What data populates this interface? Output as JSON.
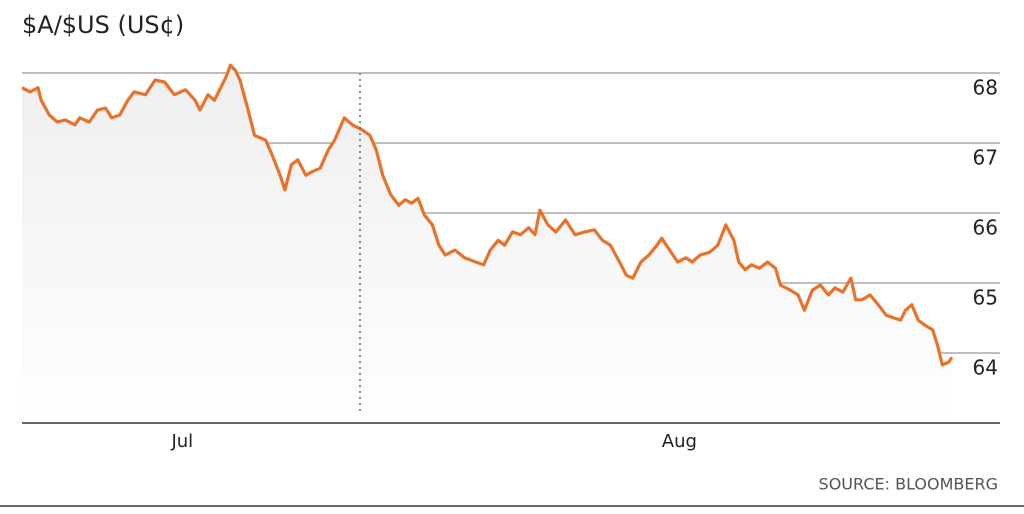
{
  "chart_data": {
    "type": "line",
    "title": "$A/$US (US¢)",
    "source": "SOURCE: BLOOMBERG",
    "color": "#e8722a",
    "grid": true,
    "area": true,
    "x": [
      -10.0,
      -9.5,
      -9.0,
      -8.8,
      -8.3,
      -7.8,
      -7.3,
      -6.7,
      -6.4,
      -5.8,
      -5.3,
      -4.8,
      -4.4,
      -3.9,
      -3.4,
      -3.0,
      -2.3,
      -1.7,
      -1.1,
      -0.5,
      0.2,
      0.8,
      1.1,
      1.6,
      2.0,
      2.7,
      3.0,
      3.3,
      3.6,
      4.1,
      4.5,
      5.2,
      5.6,
      6.1,
      6.4,
      6.8,
      7.2,
      7.7,
      8.1,
      8.6,
      9.1,
      9.5,
      10.1,
      10.6,
      11.2,
      11.7,
      12.1,
      12.5,
      13.0,
      13.5,
      13.9,
      14.3,
      14.7,
      15.1,
      15.6,
      16.0,
      16.4,
      17.0,
      17.6,
      18.3,
      18.8,
      19.2,
      19.7,
      20.1,
      20.6,
      21.1,
      21.6,
      22.0,
      22.3,
      22.8,
      23.3,
      23.9,
      24.5,
      25.1,
      25.7,
      26.2,
      26.7,
      27.2,
      27.7,
      28.1,
      28.6,
      29.1,
      29.6,
      29.9,
      30.4,
      30.9,
      31.4,
      31.8,
      32.3,
      32.9,
      33.4,
      33.9,
      34.4,
      34.7,
      35.1,
      35.5,
      36.0,
      36.5,
      37.0,
      37.3,
      37.9,
      38.4,
      38.8,
      39.3,
      39.8,
      40.3,
      40.7,
      41.2,
      41.7,
      42.0,
      42.4,
      42.9,
      43.4,
      43.9,
      44.4,
      44.8,
      45.1,
      45.5,
      45.9,
      46.3,
      46.8,
      47.1,
      47.4,
      47.8,
      48.0
    ],
    "values": [
      67.79,
      67.73,
      67.79,
      67.61,
      67.4,
      67.3,
      67.33,
      67.26,
      67.36,
      67.3,
      67.47,
      67.5,
      67.36,
      67.4,
      67.61,
      67.73,
      67.69,
      67.9,
      67.87,
      67.69,
      67.76,
      67.61,
      67.47,
      67.69,
      67.61,
      67.93,
      68.11,
      68.04,
      67.9,
      67.47,
      67.11,
      67.04,
      66.83,
      66.54,
      66.33,
      66.69,
      66.76,
      66.54,
      66.59,
      66.64,
      66.9,
      67.04,
      67.36,
      67.26,
      67.19,
      67.11,
      66.9,
      66.54,
      66.26,
      66.11,
      66.19,
      66.14,
      66.21,
      65.97,
      65.83,
      65.54,
      65.4,
      65.47,
      65.36,
      65.3,
      65.26,
      65.47,
      65.61,
      65.54,
      65.73,
      65.69,
      65.79,
      65.69,
      66.04,
      65.83,
      65.73,
      65.9,
      65.69,
      65.73,
      65.76,
      65.61,
      65.54,
      65.33,
      65.11,
      65.07,
      65.3,
      65.4,
      65.54,
      65.64,
      65.47,
      65.3,
      65.36,
      65.3,
      65.4,
      65.44,
      65.54,
      65.83,
      65.61,
      65.3,
      65.19,
      65.26,
      65.21,
      65.3,
      65.21,
      64.97,
      64.9,
      64.83,
      64.61,
      64.9,
      64.97,
      64.83,
      64.93,
      64.87,
      65.07,
      64.76,
      64.76,
      64.83,
      64.69,
      64.54,
      64.5,
      64.47,
      64.61,
      64.69,
      64.47,
      64.4,
      64.33,
      64.11,
      63.83,
      63.87,
      63.94
    ],
    "xlim": [
      -10,
      51
    ],
    "xticks": [
      {
        "value": 0,
        "label": "Jul"
      },
      {
        "value": 31,
        "label": "Aug"
      }
    ],
    "ylim": [
      63,
      68.2
    ],
    "yticks": [
      64,
      65,
      66,
      67,
      68
    ]
  }
}
